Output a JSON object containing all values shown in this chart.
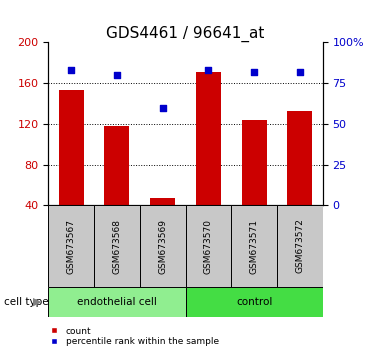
{
  "title": "GDS4461 / 96641_at",
  "samples": [
    "GSM673567",
    "GSM673568",
    "GSM673569",
    "GSM673570",
    "GSM673571",
    "GSM673572"
  ],
  "counts": [
    153,
    118,
    47,
    171,
    124,
    133
  ],
  "percentiles": [
    83,
    80,
    60,
    83,
    82,
    82
  ],
  "bar_color": "#CC0000",
  "dot_color": "#0000CC",
  "ylim_left": [
    40,
    200
  ],
  "ylim_right": [
    0,
    100
  ],
  "yticks_left": [
    40,
    80,
    120,
    160,
    200
  ],
  "yticks_right": [
    0,
    25,
    50,
    75,
    100
  ],
  "grid_values": [
    80,
    120,
    160
  ],
  "cell_type_label": "cell type",
  "legend_count": "count",
  "legend_percentile": "percentile rank within the sample",
  "title_fontsize": 11,
  "tick_fontsize": 8,
  "group_spans": [
    {
      "label": "endothelial cell",
      "start": 0,
      "end": 2,
      "color": "#90EE90"
    },
    {
      "label": "control",
      "start": 3,
      "end": 5,
      "color": "#44DD44"
    }
  ],
  "sample_box_color": "#C8C8C8",
  "bg_color": "#FFFFFF"
}
